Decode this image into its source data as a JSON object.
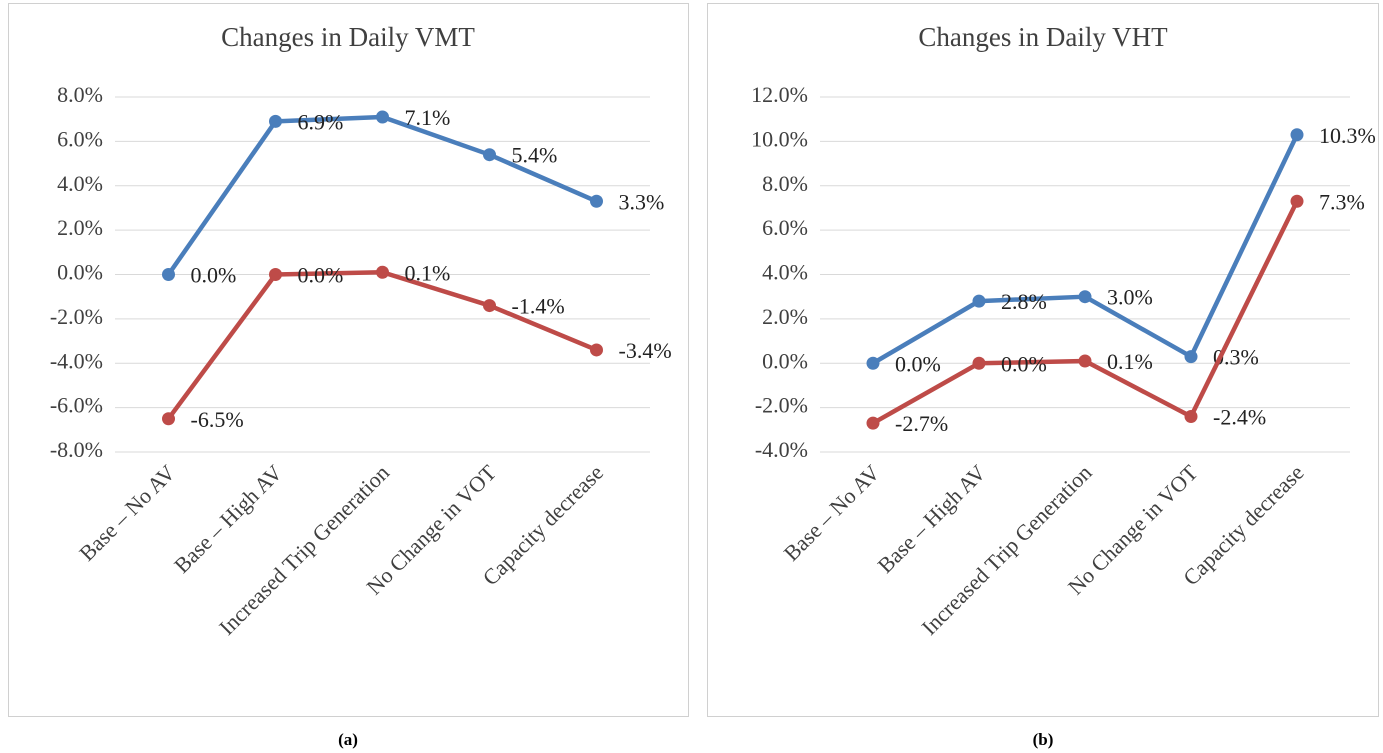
{
  "chart_data": [
    {
      "type": "line",
      "title": "Changes in Daily VMT",
      "caption": "(a)",
      "categories": [
        "Base – No AV",
        "Base – High AV",
        "Increased Trip Generation",
        "No Change in VOT",
        "Capacity decrease"
      ],
      "series": [
        {
          "color": "#4a7ebb",
          "values": [
            0.0,
            6.9,
            7.1,
            5.4,
            3.3
          ],
          "value_labels": [
            "0.0%",
            "6.9%",
            "7.1%",
            "5.4%",
            "3.3%"
          ]
        },
        {
          "color": "#be4b48",
          "values": [
            -6.5,
            0.0,
            0.1,
            -1.4,
            -3.4
          ],
          "value_labels": [
            "-6.5%",
            "0.0%",
            "0.1%",
            "-1.4%",
            "-3.4%"
          ]
        }
      ],
      "ylim": [
        -8,
        8
      ],
      "yticks": [
        {
          "value": 8,
          "label": "8.0%"
        },
        {
          "value": 6,
          "label": "6.0%"
        },
        {
          "value": 4,
          "label": "4.0%"
        },
        {
          "value": 2,
          "label": "2.0%"
        },
        {
          "value": 0,
          "label": "0.0%"
        },
        {
          "value": -2,
          "label": "-2.0%"
        },
        {
          "value": -4,
          "label": "-4.0%"
        },
        {
          "value": -6,
          "label": "-6.0%"
        },
        {
          "value": -8,
          "label": "-8.0%"
        }
      ],
      "grid": true
    },
    {
      "type": "line",
      "title": "Changes in Daily VHT",
      "caption": "(b)",
      "categories": [
        "Base – No AV",
        "Base – High AV",
        "Increased Trip Generation",
        "No Change in VOT",
        "Capacity decrease"
      ],
      "series": [
        {
          "color": "#4a7ebb",
          "values": [
            0.0,
            2.8,
            3.0,
            0.3,
            10.3
          ],
          "value_labels": [
            "0.0%",
            "2.8%",
            "3.0%",
            "0.3%",
            "10.3%"
          ]
        },
        {
          "color": "#be4b48",
          "values": [
            -2.7,
            0.0,
            0.1,
            -2.4,
            7.3
          ],
          "value_labels": [
            "-2.7%",
            "0.0%",
            "0.1%",
            "-2.4%",
            "7.3%"
          ]
        }
      ],
      "ylim": [
        -4,
        12
      ],
      "yticks": [
        {
          "value": 12,
          "label": "12.0%"
        },
        {
          "value": 10,
          "label": "10.0%"
        },
        {
          "value": 8,
          "label": "8.0%"
        },
        {
          "value": 6,
          "label": "6.0%"
        },
        {
          "value": 4,
          "label": "4.0%"
        },
        {
          "value": 2,
          "label": "2.0%"
        },
        {
          "value": 0,
          "label": "0.0%"
        },
        {
          "value": -2,
          "label": "-2.0%"
        },
        {
          "value": -4,
          "label": "-4.0%"
        }
      ],
      "grid": true
    }
  ]
}
